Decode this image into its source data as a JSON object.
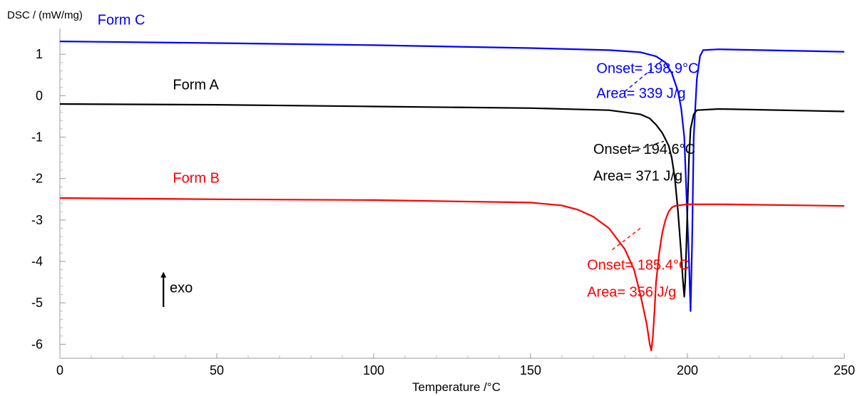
{
  "chart_data": {
    "type": "line",
    "title": "",
    "xlabel": "Temperature /°C",
    "ylabel": "DSC / (mW/mg)",
    "xlim": [
      0,
      250
    ],
    "ylim": [
      -6.2,
      1.45
    ],
    "x_ticks": [
      0,
      50,
      100,
      150,
      200,
      250
    ],
    "y_ticks": [
      1,
      0,
      -1,
      -2,
      -3,
      -4,
      -5,
      -6
    ],
    "grid": false,
    "legend": "none",
    "series": [
      {
        "name": "Form C",
        "color": "#0000ff",
        "x": [
          0,
          50,
          100,
          150,
          175,
          185,
          190,
          193,
          195,
          197,
          198,
          199,
          199.5,
          200,
          200.5,
          201,
          201.5,
          202,
          203,
          204,
          205,
          210,
          250
        ],
        "y": [
          1.31,
          1.27,
          1.22,
          1.15,
          1.1,
          1.05,
          0.95,
          0.8,
          0.55,
          0.1,
          -0.3,
          -1.0,
          -2.0,
          -3.0,
          -4.0,
          -5.2,
          -3.5,
          -1.0,
          0.4,
          0.95,
          1.1,
          1.12,
          1.06
        ]
      },
      {
        "name": "Form A",
        "color": "#000000",
        "x": [
          0,
          50,
          100,
          150,
          175,
          185,
          188,
          190,
          192,
          194,
          195,
          196,
          197,
          198,
          198.5,
          199,
          199.3,
          199.7,
          200.5,
          201,
          202,
          203,
          210,
          250
        ],
        "y": [
          -0.2,
          -0.22,
          -0.26,
          -0.3,
          -0.35,
          -0.45,
          -0.55,
          -0.7,
          -0.9,
          -1.2,
          -1.5,
          -2.0,
          -2.8,
          -3.8,
          -4.4,
          -4.85,
          -4.5,
          -3.5,
          -1.5,
          -0.8,
          -0.45,
          -0.35,
          -0.32,
          -0.38
        ]
      },
      {
        "name": "Form B",
        "color": "#ff0000",
        "x": [
          0,
          50,
          100,
          150,
          160,
          165,
          170,
          175,
          180,
          183,
          185,
          187,
          188,
          188.5,
          189,
          189.5,
          190,
          191,
          192,
          193,
          194,
          195,
          196,
          200,
          210,
          250
        ],
        "y": [
          -2.47,
          -2.5,
          -2.52,
          -2.58,
          -2.65,
          -2.75,
          -2.92,
          -3.2,
          -3.7,
          -4.2,
          -4.8,
          -5.5,
          -6.0,
          -6.15,
          -5.8,
          -5.2,
          -4.5,
          -3.8,
          -3.3,
          -3.0,
          -2.8,
          -2.7,
          -2.66,
          -2.62,
          -2.62,
          -2.66
        ]
      }
    ],
    "annotations": [
      {
        "name": "label-form-c",
        "text": "Form C",
        "color": "#0000ff",
        "anchor_x": 12,
        "anchor_y": 1.72
      },
      {
        "name": "label-form-a",
        "text": "Form A",
        "color": "#000000",
        "anchor_x": 36,
        "anchor_y": 0.15
      },
      {
        "name": "label-form-b",
        "text": "Form B",
        "color": "#ff0000",
        "anchor_x": 36,
        "anchor_y": -2.1
      },
      {
        "name": "onset-c",
        "text": "Onset= 198.9°C",
        "color": "#0000ff",
        "anchor_x": 171,
        "anchor_y": 0.55
      },
      {
        "name": "area-c",
        "text": "Area= 339 J/g",
        "color": "#0000ff",
        "anchor_x": 171,
        "anchor_y": -0.05
      },
      {
        "name": "onset-a",
        "text": "Onset= 194.6°C",
        "color": "#000000",
        "anchor_x": 170,
        "anchor_y": -1.4
      },
      {
        "name": "area-a",
        "text": "Area= 371 J/g",
        "color": "#000000",
        "anchor_x": 170,
        "anchor_y": -2.05
      },
      {
        "name": "onset-b",
        "text": "Onset= 185.4°C",
        "color": "#ff0000",
        "anchor_x": 168,
        "anchor_y": -4.2
      },
      {
        "name": "area-b",
        "text": "Area= 356 J/g",
        "color": "#ff0000",
        "anchor_x": 168,
        "anchor_y": -4.85
      },
      {
        "name": "exo-label",
        "text": "exo",
        "color": "#000000",
        "anchor_x": 35,
        "anchor_y": -4.75
      }
    ],
    "leaders": [
      {
        "name": "leader-c",
        "color": "#0000ff",
        "from": [
          180,
          0.1
        ],
        "to": [
          192,
          0.85
        ]
      },
      {
        "name": "leader-a",
        "color": "#000000",
        "from": [
          182,
          -1.35
        ],
        "to": [
          192.5,
          -1.1
        ]
      },
      {
        "name": "leader-b",
        "color": "#ff0000",
        "from": [
          176,
          -3.72
        ],
        "to": [
          185,
          -3.2
        ]
      }
    ],
    "exo_arrow": {
      "x": 33,
      "y_from": -5.1,
      "y_to": -4.25,
      "label": "exo"
    }
  }
}
